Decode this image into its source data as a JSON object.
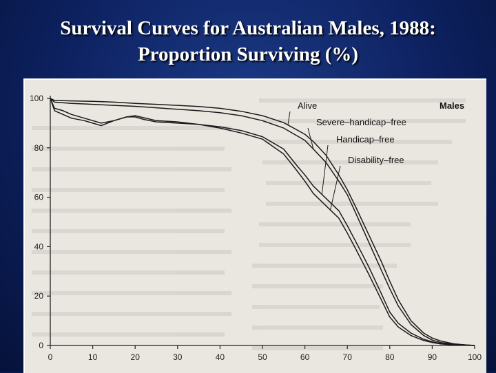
{
  "slide": {
    "title_line1": "Survival Curves for Australian Males, 1988:",
    "title_line2": "Proportion Surviving (%)"
  },
  "chart_data": {
    "type": "line",
    "title": "Survival Curves for Australian Males, 1988: Proportion Surviving (%)",
    "panel_label": "Males",
    "xlabel": "",
    "ylabel": "",
    "xlim": [
      0,
      100
    ],
    "ylim": [
      0,
      100
    ],
    "x_ticks": [
      "0",
      "10",
      "20",
      "30",
      "40",
      "50",
      "60",
      "70",
      "80",
      "90",
      "100"
    ],
    "y_ticks": [
      "0",
      "20",
      "40",
      "60",
      "80",
      "100"
    ],
    "grid": false,
    "series": [
      {
        "name": "Alive",
        "x": [
          0,
          1,
          5,
          10,
          15,
          20,
          25,
          30,
          35,
          40,
          45,
          50,
          55,
          60,
          62,
          65,
          68,
          70,
          72,
          75,
          78,
          80,
          82,
          85,
          88,
          90,
          92,
          95,
          98,
          100
        ],
        "y": [
          100,
          99.2,
          99,
          98.8,
          98.5,
          98,
          97.6,
          97.2,
          96.7,
          96,
          94.8,
          93,
          90.2,
          85.5,
          82.5,
          77,
          69,
          63,
          56,
          45,
          34,
          26,
          18.5,
          10,
          5,
          3,
          1.8,
          0.7,
          0.2,
          0
        ]
      },
      {
        "name": "Severe–handicap–free",
        "x": [
          0,
          1,
          5,
          10,
          15,
          20,
          25,
          30,
          35,
          40,
          45,
          50,
          55,
          60,
          62,
          65,
          68,
          70,
          72,
          75,
          78,
          80,
          82,
          85,
          88,
          90,
          92,
          95,
          98,
          100
        ],
        "y": [
          100,
          98.5,
          98,
          97.6,
          97.2,
          96.8,
          96.2,
          95.6,
          95,
          94.2,
          93,
          91,
          88,
          83,
          79.5,
          74,
          66.5,
          61,
          53.5,
          42,
          30.5,
          23,
          16,
          8.5,
          4,
          2.2,
          1.2,
          0.5,
          0.2,
          0
        ]
      },
      {
        "name": "Handicap–free",
        "x": [
          0,
          1,
          3,
          5,
          8,
          10,
          12,
          15,
          18,
          20,
          22,
          25,
          30,
          35,
          40,
          45,
          50,
          55,
          58,
          60,
          62,
          65,
          68,
          70,
          72,
          75,
          78,
          80,
          82,
          85,
          88,
          90,
          92,
          95,
          98,
          100
        ],
        "y": [
          100,
          96,
          95,
          93.5,
          92,
          91,
          90,
          91,
          92.5,
          93,
          92.2,
          91,
          90.5,
          89.5,
          88.5,
          87,
          84.5,
          79.5,
          73,
          69,
          64.5,
          59.5,
          54.5,
          48.5,
          42,
          32,
          21,
          13.5,
          9,
          5,
          2.5,
          1.5,
          0.8,
          0.3,
          0.1,
          0
        ]
      },
      {
        "name": "Disability–free",
        "x": [
          0,
          1,
          3,
          5,
          8,
          10,
          12,
          15,
          18,
          20,
          22,
          25,
          28,
          30,
          35,
          40,
          45,
          50,
          55,
          58,
          60,
          62,
          65,
          68,
          70,
          72,
          75,
          78,
          80,
          82,
          85,
          88,
          90,
          92,
          95,
          98,
          100
        ],
        "y": [
          100,
          95,
          93.5,
          92,
          91,
          90,
          89,
          91,
          92.5,
          92.5,
          91.5,
          90.5,
          90.2,
          90,
          89.5,
          88,
          86,
          83.5,
          77.5,
          71,
          66.5,
          61.5,
          56.5,
          51.5,
          45.5,
          39,
          29,
          18.5,
          11.5,
          7.5,
          4,
          2,
          1.2,
          0.6,
          0.2,
          0.1,
          0
        ]
      }
    ],
    "annotations": [
      {
        "text": "Alive",
        "series": "Alive"
      },
      {
        "text": "Severe–handicap–free",
        "series": "Severe–handicap–free"
      },
      {
        "text": "Handicap–free",
        "series": "Handicap–free"
      },
      {
        "text": "Disability–free",
        "series": "Disability–free"
      }
    ]
  }
}
